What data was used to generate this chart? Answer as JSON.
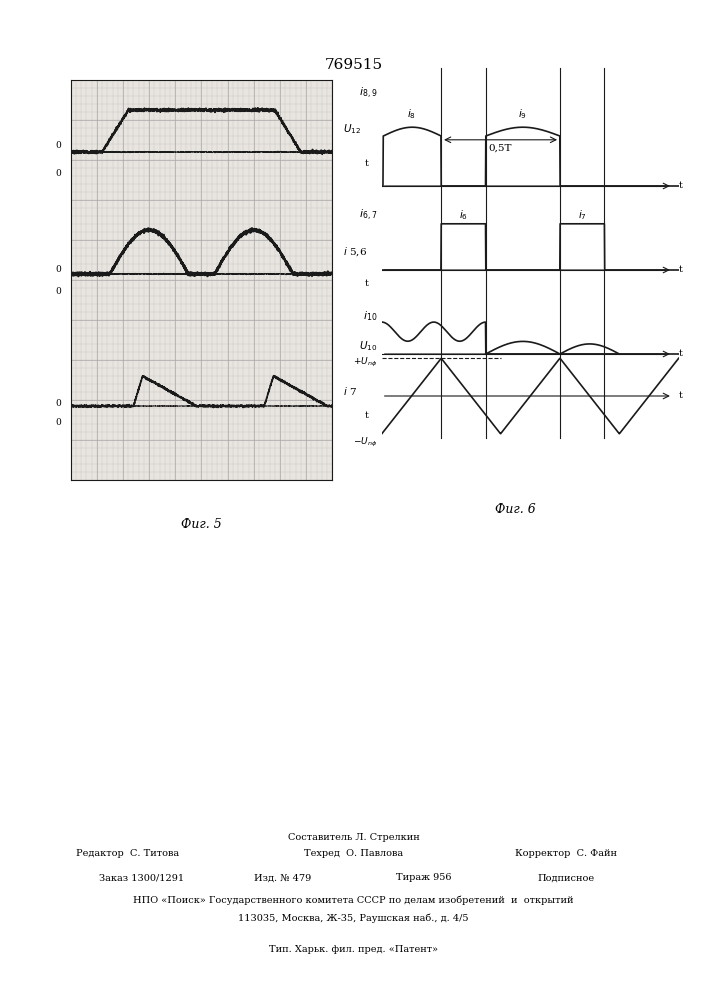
{
  "title": "769515",
  "fig5_label": "Фиг. 5",
  "fig6_label": "Фиг. 6",
  "bg_color": "#e8e5e0",
  "line_color": "#1a1a1a",
  "grid_color": "#aaaaaa",
  "label_u12": "U₁₂",
  "label_i56": "i 5,6",
  "label_i7": "i 7",
  "footer_sestavitel": "Составитель Л. Стрелкин",
  "footer_redaktor": "Редактор  С. Титова",
  "footer_tehred": "Техред  О. Павлова",
  "footer_korrektor": "Корректор  С. Файн",
  "footer_zakaz": "Заказ 1300/1291",
  "footer_izd": "Изд. № 479",
  "footer_tirazh": "Тираж 956",
  "footer_podpisnoe": "Подписное",
  "footer_npo": "НПО «Поиск» Государственного комитета СССР по делам изобретений  и  открытий",
  "footer_addr": "113035, Москва, Ж-35, Раушская наб., д. 4/5",
  "footer_tip": "Тип. Харьк. фил. пред. «Патент»"
}
